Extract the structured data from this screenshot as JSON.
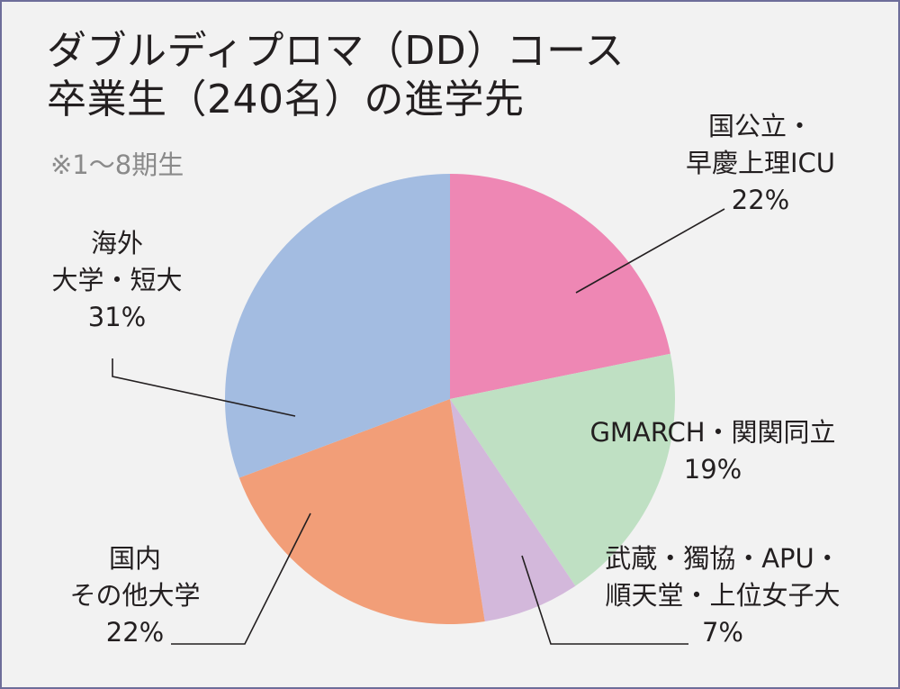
{
  "title_lines": [
    "ダブルディプロマ（DD）コース",
    "卒業生（240名）の進学先"
  ],
  "note": "※1〜8期生",
  "chart_data": {
    "type": "pie",
    "slices": [
      {
        "label_lines": [
          "国公立・",
          "早慶上理ICU"
        ],
        "value": 22,
        "pct_text": "22%",
        "color": "#ee87b4"
      },
      {
        "label_lines": [
          "GMARCH・関関同立"
        ],
        "value": 19,
        "pct_text": "19%",
        "color": "#bfe0c3"
      },
      {
        "label_lines": [
          "武蔵・獨協・APU・",
          "順天堂・上位女子大"
        ],
        "value": 7,
        "pct_text": "7%",
        "color": "#d3b8db"
      },
      {
        "label_lines": [
          "国内",
          "その他大学"
        ],
        "value": 22,
        "pct_text": "22%",
        "color": "#f29e78"
      },
      {
        "label_lines": [
          "海外",
          "大学・短大"
        ],
        "value": 31,
        "pct_text": "31%",
        "color": "#a3bce1"
      }
    ]
  }
}
